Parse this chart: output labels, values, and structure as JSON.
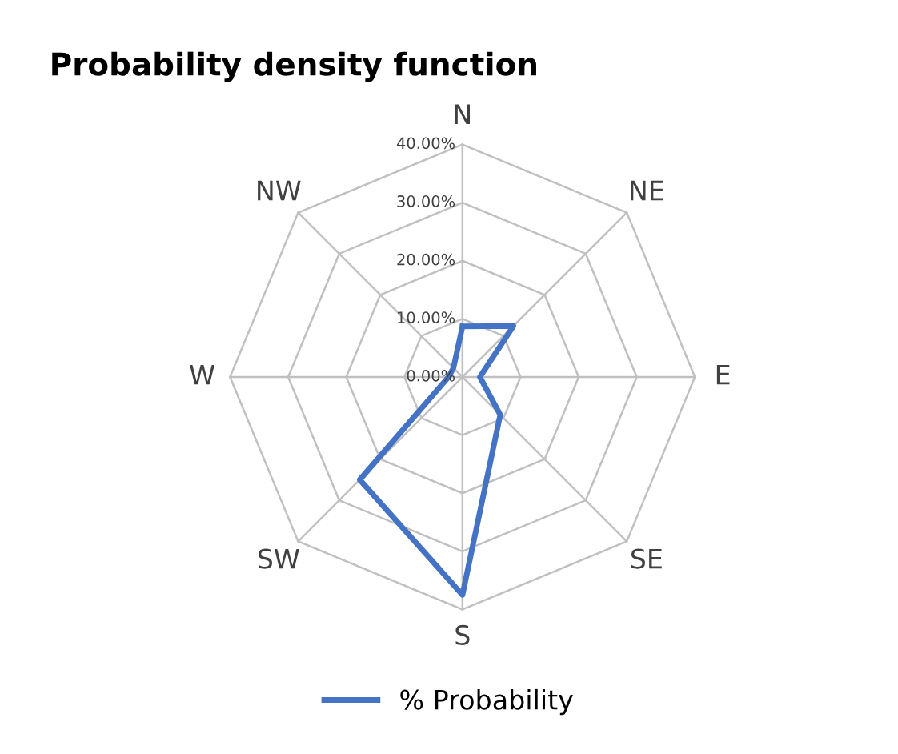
{
  "chart_data": {
    "type": "radar",
    "title": "Probability density function",
    "categories": [
      "N",
      "NE",
      "E",
      "SE",
      "S",
      "SW",
      "W",
      "NW"
    ],
    "series": [
      {
        "name": "% Probability",
        "color": "#4472c4",
        "values": [
          8.7,
          12.4,
          3,
          9.2,
          37.5,
          25,
          2.4,
          2.2
        ]
      }
    ],
    "ylim": [
      0,
      40
    ],
    "yticks": [
      {
        "value": 0,
        "label": "0.00%"
      },
      {
        "value": 10,
        "label": "10.00%"
      },
      {
        "value": 20,
        "label": "20.00%"
      },
      {
        "value": 30,
        "label": "30.00%"
      },
      {
        "value": 40,
        "label": "40.00%"
      }
    ],
    "grid": true,
    "legend": "bottom",
    "marker": "none",
    "line_style": "solid"
  }
}
